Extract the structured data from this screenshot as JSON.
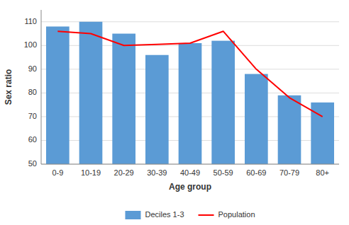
{
  "chart_data": {
    "type": "bar",
    "x_label": "Age group",
    "y_label": "Sex ratio",
    "categories": [
      "0-9",
      "10-19",
      "20-29",
      "30-39",
      "40-49",
      "50-59",
      "60-69",
      "70-79",
      "80+"
    ],
    "series": [
      {
        "name": "Deciles 1-3",
        "type": "bar",
        "color": "#5b9bd5",
        "values": [
          108,
          110,
          105,
          96,
          101,
          102,
          88,
          79,
          76
        ]
      },
      {
        "name": "Population",
        "type": "line",
        "color": "#ff0000",
        "values": [
          106,
          105,
          100,
          100.5,
          101,
          106,
          90,
          78,
          70
        ]
      }
    ],
    "ylim": [
      50,
      115
    ],
    "yticks": [
      50,
      60,
      70,
      80,
      90,
      100,
      110
    ],
    "grid": true,
    "legend": "bottom"
  }
}
